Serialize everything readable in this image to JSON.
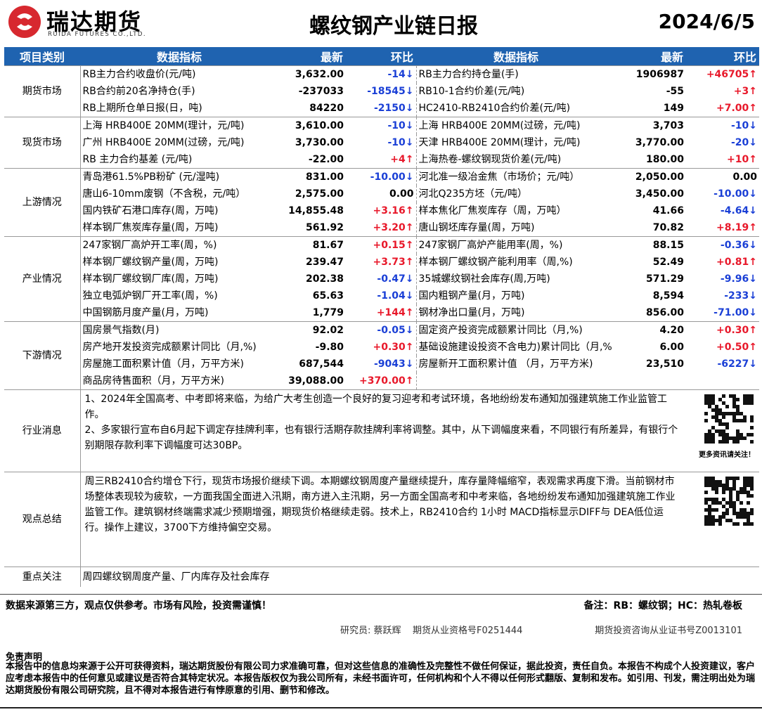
{
  "header": {
    "company": "瑞达期货",
    "company_en": "RUIDA FUTURES CO.,LTD.",
    "title": "螺纹钢产业链日报",
    "date": "2024/6/5"
  },
  "table": {
    "columns": [
      "项目类别",
      "数据指标",
      "最新",
      "环比",
      "数据指标",
      "最新",
      "环比"
    ],
    "sections": [
      {
        "category": "期货市场",
        "rows": [
          {
            "left": [
              "RB主力合约收盘价(元/吨)",
              "3,632.00",
              "-14↓"
            ],
            "right": [
              "RB主力合约持仓量(手)",
              "1906987",
              "+46705↑"
            ]
          },
          {
            "left": [
              "RB合约前20名净持仓(手)",
              "-237033",
              "-18545↓"
            ],
            "right": [
              "RB10-1合约价差(元/吨)",
              "-55",
              "+3↑"
            ]
          },
          {
            "left": [
              "RB上期所仓单日报(日，吨)",
              "84220",
              "-2150↓"
            ],
            "right": [
              "HC2410-RB2410合约价差(元/吨)",
              "149",
              "+7.00↑"
            ]
          }
        ]
      },
      {
        "category": "现货市场",
        "rows": [
          {
            "left": [
              "上海 HRB400E 20MM(理计，元/吨)",
              "3,610.00",
              "-10↓"
            ],
            "right": [
              "上海 HRB400E 20MM(过磅，元/吨)",
              "3,703",
              "-10↓"
            ]
          },
          {
            "left": [
              "广州 HRB400E 20MM(过磅，元/吨)",
              "3,730.00",
              "-10↓"
            ],
            "right": [
              "天津 HRB400E 20MM(理计，元/吨)",
              "3,770.00",
              "-20↓"
            ]
          },
          {
            "left": [
              "RB 主力合约基差 (元/吨)",
              "-22.00",
              "+4↑"
            ],
            "right": [
              "上海热卷-螺纹钢现货价差(元/吨)",
              "180.00",
              "+10↑"
            ]
          }
        ]
      },
      {
        "category": "上游情况",
        "rows": [
          {
            "left": [
              "青岛港61.5%PB粉矿 (元/湿吨)",
              "831.00",
              "-10.00↓"
            ],
            "right": [
              "河北准一级冶金焦（市场价；元/吨）",
              "2,050.00",
              "0.00"
            ]
          },
          {
            "left": [
              "唐山6-10mm废钢（不含税，元/吨）",
              "2,575.00",
              "0.00"
            ],
            "right": [
              "河北Q235方坯（元/吨）",
              "3,450.00",
              "-10.00↓"
            ]
          },
          {
            "left": [
              "国内铁矿石港口库存(周，万吨)",
              "14,855.48",
              "+3.16↑"
            ],
            "right": [
              "样本焦化厂焦炭库存（周，万吨）",
              "41.66",
              "-4.64↓"
            ]
          },
          {
            "left": [
              "样本钢厂焦炭库存量(周，万吨)",
              "561.92",
              "+3.20↑"
            ],
            "right": [
              "唐山钢坯库存量(周，万吨)",
              "70.82",
              "+8.19↑"
            ]
          }
        ]
      },
      {
        "category": "产业情况",
        "rows": [
          {
            "left": [
              "247家钢厂高炉开工率(周，%)",
              "81.67",
              "+0.15↑"
            ],
            "right": [
              "247家钢厂高炉产能用率(周，%)",
              "88.15",
              "-0.36↓"
            ]
          },
          {
            "left": [
              "样本钢厂螺纹钢产量(周，万吨)",
              "239.47",
              "+3.73↑"
            ],
            "right": [
              "样本钢厂螺纹钢产能利用率（周,%)",
              "52.49",
              "+0.81↑"
            ]
          },
          {
            "left": [
              "样本钢厂螺纹钢厂库(周，万吨)",
              "202.38",
              "-0.47↓"
            ],
            "right": [
              "35城螺纹钢社会库存(周,万吨)",
              "571.29",
              "-9.96↓"
            ]
          },
          {
            "left": [
              "独立电弧炉钢厂开工率(周，%)",
              "65.63",
              "-1.04↓"
            ],
            "right": [
              "国内粗钢产量(月，万吨)",
              "8,594",
              "-233↓"
            ]
          },
          {
            "left": [
              "中国钢筋月度产量(月，万吨)",
              "1,779",
              "+144↑"
            ],
            "right": [
              "钢材净出口量(月，万吨)",
              "856.00",
              "-71.00↓"
            ]
          }
        ]
      },
      {
        "category": "下游情况",
        "rows": [
          {
            "left": [
              "国房景气指数(月)",
              "92.02",
              "-0.05↓"
            ],
            "right": [
              "固定资产投资完成额累计同比（月,%)",
              "4.20",
              "+0.30↑"
            ]
          },
          {
            "left": [
              "房产地开发投资完成额累计同比（月,%)",
              "-9.80",
              "+0.30↑"
            ],
            "right": [
              "基础设施建设投资不含电力)累计同比（月,%",
              "6.00",
              "+0.50↑"
            ]
          },
          {
            "left": [
              "房屋施工面积累计值（月，万平方米)",
              "687,544",
              "-9043↓"
            ],
            "right": [
              "房屋新开工面积累计值 （月，万平方米)",
              "23,510",
              "-6227↓"
            ]
          },
          {
            "left": [
              "商品房待售面积（月，万平方米)",
              "39,088.00",
              "+370.00↑"
            ]
          }
        ]
      }
    ],
    "news": {
      "category": "行业消息",
      "paragraphs": [
        "1、2024年全国高考、中考即将来临，为给广大考生创造一个良好的复习迎考和考试环境，各地纷纷发布通知加强建筑施工作业监管工作。",
        "2、多家银行宣布自6月起下调定存挂牌利率，也有银行活期存款挂牌利率将调整。其中，从下调幅度来看，不同银行有所差异，有银行个别期限存款利率下调幅度可达30BP。"
      ],
      "qr_caption": "更多资讯请关注！"
    },
    "summary": {
      "category": "观点总结",
      "text": "周三RB2410合约增仓下行，现货市场报价继续下调。本期螺纹钢周度产量继续提升，库存量降幅缩窄，表观需求再度下滑。当前钢材市场整体表现较为疲软，一方面我国全面进入汛期，南方进入主汛期，另一方面全国高考和中考来临，各地纷纷发布通知加强建筑施工作业监管工作。建筑钢材终端需求减少预期增强，期现货价格继续走弱。技术上，RB2410合约 1小时 MACD指标显示DIFF与 DEA低位运行。操作上建议，3700下方维持偏空交易。"
    },
    "focus": {
      "category": "重点关注",
      "text": "周四螺纹钢周度产量、厂内库存及社会库存"
    }
  },
  "footer": {
    "risk": "数据来源第三方，观点仅供参考。市场有风险，投资需谨慎！",
    "note": "备注：RB：螺纹钢；HC：热轧卷板",
    "researcher": "研究员: 蔡跃辉    期货从业资格号F0251444",
    "certificate": "期货投资咨询从业证书号Z0013101",
    "disclaimer_title": "免责声明",
    "disclaimer": "本报告中的信息均来源于公开可获得资料，瑞达期货股份有限公司力求准确可靠，但对这些信息的准确性及完整性不做任何保证，据此投资，责任自负。本报告不构成个人投资建议，客户应考虑本报告中的任何意见或建议是否符合其特定状况。本报告版权仅为我公司所有，未经书面许可，任何机构和个人不得以任何形式翻版、复制和发布。如引用、刊发，需注明出处为瑞达期货股份有限公司研究院，且不得对本报告进行有悖原意的引用、删节和修改。"
  }
}
